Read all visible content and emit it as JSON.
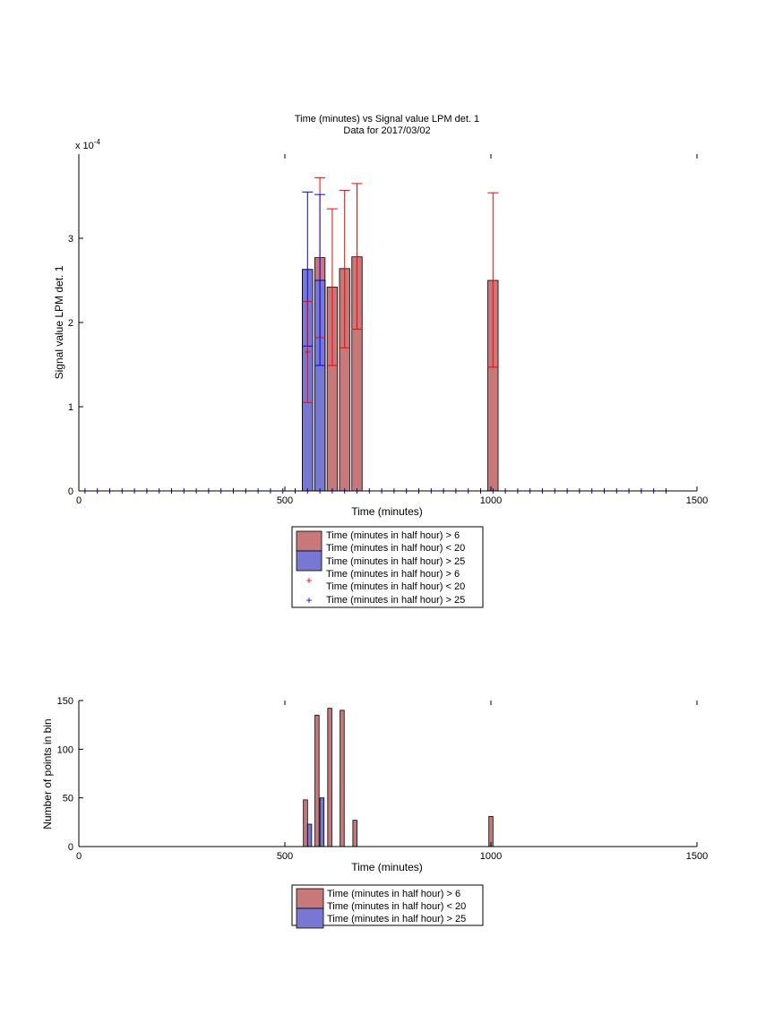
{
  "figure": {
    "title_line1": "Time (minutes) vs Signal value LPM det. 1",
    "title_line2": "Data for 2017/03/02"
  },
  "colors": {
    "red_bar": "#c87878",
    "blue_bar": "#7878d2",
    "red_err": "#ff0000",
    "blue_err": "#0000ff"
  },
  "chart_data": [
    {
      "type": "bar",
      "xlabel": "Time (minutes)",
      "ylabel": "Signal value LPM det. 1",
      "exponent_label": "x 10",
      "exponent_power": "-4",
      "xlim": [
        0,
        1500
      ],
      "ylim": [
        0,
        4
      ],
      "y_scale_note": "y values in units of 1e-4",
      "xticks": [
        "0",
        "500",
        "1000",
        "1500"
      ],
      "yticks": [
        "0",
        "1",
        "2",
        "3"
      ],
      "bar_width": 25,
      "series": [
        {
          "name_lines": [
            "Time (minutes in half hour) > 6",
            "Time (minutes in half hour) < 20"
          ],
          "style": "bar",
          "color": "red",
          "points": [
            {
              "x": 585,
              "y": 2.77,
              "lo": 1.82,
              "hi": 3.72
            },
            {
              "x": 615,
              "y": 2.42,
              "lo": 1.49,
              "hi": 3.35
            },
            {
              "x": 645,
              "y": 2.64,
              "lo": 1.7,
              "hi": 3.57
            },
            {
              "x": 675,
              "y": 2.78,
              "lo": 1.92,
              "hi": 3.65
            },
            {
              "x": 1005,
              "y": 2.5,
              "lo": 1.47,
              "hi": 3.54
            }
          ]
        },
        {
          "name_lines": [
            "Time (minutes in half hour) > 25"
          ],
          "style": "bar",
          "color": "blue",
          "points": [
            {
              "x": 555,
              "y": 2.63,
              "lo": 1.72,
              "hi": 3.55
            },
            {
              "x": 585,
              "y": 2.5,
              "lo": 1.49,
              "hi": 3.52
            }
          ]
        },
        {
          "name_lines": [
            "Time (minutes in half hour) > 6",
            "Time (minutes in half hour) < 20"
          ],
          "style": "marker",
          "color": "red",
          "points": [
            {
              "x": 555,
              "y": 1.65,
              "lo": 1.05,
              "hi": 2.25
            }
          ]
        },
        {
          "name_lines": [
            "Time (minutes in half hour) > 25"
          ],
          "style": "marker",
          "color": "blue",
          "x_start": 15,
          "x_step": 30,
          "x_end": 1425,
          "y": 0
        }
      ]
    },
    {
      "type": "bar",
      "xlabel": "Time (minutes)",
      "ylabel": "Number of points in bin",
      "xlim": [
        0,
        1500
      ],
      "ylim": [
        0,
        150
      ],
      "xticks": [
        "0",
        "500",
        "1000",
        "1500"
      ],
      "yticks": [
        "0",
        "50",
        "100",
        "150"
      ],
      "bar_width": 10,
      "series": [
        {
          "name_lines": [
            "Time (minutes in half hour) > 6",
            "Time (minutes in half hour) < 20"
          ],
          "color": "red",
          "points": [
            {
              "x": 550,
              "y": 48
            },
            {
              "x": 578,
              "y": 135
            },
            {
              "x": 609,
              "y": 142
            },
            {
              "x": 639,
              "y": 140
            },
            {
              "x": 670,
              "y": 27
            },
            {
              "x": 1000,
              "y": 31
            }
          ]
        },
        {
          "name_lines": [
            "Time (minutes in half hour) > 25"
          ],
          "color": "blue",
          "points": [
            {
              "x": 560,
              "y": 23
            },
            {
              "x": 590,
              "y": 50
            }
          ]
        }
      ]
    }
  ]
}
